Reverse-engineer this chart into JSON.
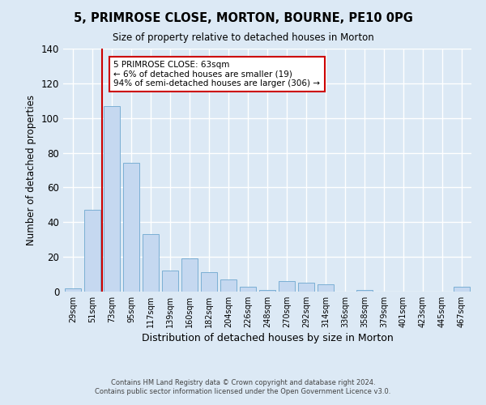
{
  "title": "5, PRIMROSE CLOSE, MORTON, BOURNE, PE10 0PG",
  "subtitle": "Size of property relative to detached houses in Morton",
  "xlabel": "Distribution of detached houses by size in Morton",
  "ylabel": "Number of detached properties",
  "bar_color": "#c5d8f0",
  "bar_edge_color": "#7bafd4",
  "background_color": "#dce9f5",
  "grid_color": "#ffffff",
  "categories": [
    "29sqm",
    "51sqm",
    "73sqm",
    "95sqm",
    "117sqm",
    "139sqm",
    "160sqm",
    "182sqm",
    "204sqm",
    "226sqm",
    "248sqm",
    "270sqm",
    "292sqm",
    "314sqm",
    "336sqm",
    "358sqm",
    "379sqm",
    "401sqm",
    "423sqm",
    "445sqm",
    "467sqm"
  ],
  "values": [
    2,
    47,
    107,
    74,
    33,
    12,
    19,
    11,
    7,
    3,
    1,
    6,
    5,
    4,
    0,
    1,
    0,
    0,
    0,
    0,
    3
  ],
  "ylim": [
    0,
    140
  ],
  "yticks": [
    0,
    20,
    40,
    60,
    80,
    100,
    120,
    140
  ],
  "red_line_x": 1.5,
  "annotation_title": "5 PRIMROSE CLOSE: 63sqm",
  "annotation_line1": "← 6% of detached houses are smaller (19)",
  "annotation_line2": "94% of semi-detached houses are larger (306) →",
  "annotation_box_color": "#ffffff",
  "annotation_border_color": "#cc0000",
  "red_line_color": "#cc0000",
  "footer_line1": "Contains HM Land Registry data © Crown copyright and database right 2024.",
  "footer_line2": "Contains public sector information licensed under the Open Government Licence v3.0."
}
